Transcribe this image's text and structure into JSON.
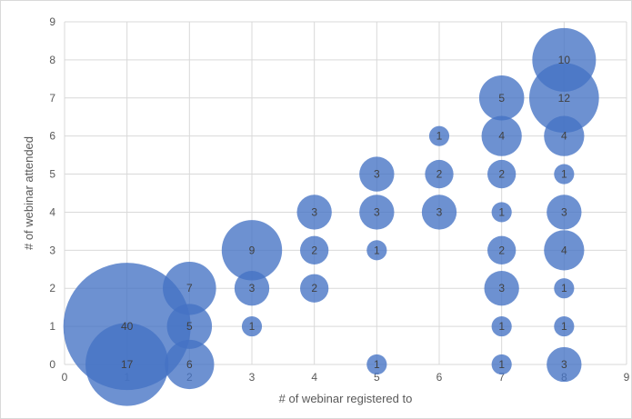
{
  "chart_data": {
    "type": "scatter",
    "variant": "bubble",
    "title": "",
    "xlabel": "# of webinar registered to",
    "ylabel": "# of webinar attended",
    "xlim": [
      0,
      9
    ],
    "ylim": [
      0,
      9
    ],
    "x_ticks": [
      "0",
      "1",
      "2",
      "3",
      "4",
      "5",
      "6",
      "7",
      "8",
      "9"
    ],
    "y_ticks": [
      "0",
      "1",
      "2",
      "3",
      "4",
      "5",
      "6",
      "7",
      "8",
      "9"
    ],
    "grid": "vertical and horizontal",
    "legend": "none",
    "bubble_color": "#4472C4",
    "points": [
      {
        "x": 1,
        "y": 1,
        "size": 40,
        "label": "40"
      },
      {
        "x": 1,
        "y": 0,
        "size": 17,
        "label": "17"
      },
      {
        "x": 2,
        "y": 2,
        "size": 7,
        "label": "7"
      },
      {
        "x": 2,
        "y": 1,
        "size": 5,
        "label": "5"
      },
      {
        "x": 2,
        "y": 0,
        "size": 6,
        "label": "6"
      },
      {
        "x": 3,
        "y": 3,
        "size": 9,
        "label": "9"
      },
      {
        "x": 3,
        "y": 2,
        "size": 3,
        "label": "3"
      },
      {
        "x": 3,
        "y": 1,
        "size": 1,
        "label": "1"
      },
      {
        "x": 4,
        "y": 4,
        "size": 3,
        "label": "3"
      },
      {
        "x": 4,
        "y": 3,
        "size": 2,
        "label": "2"
      },
      {
        "x": 4,
        "y": 2,
        "size": 2,
        "label": "2"
      },
      {
        "x": 5,
        "y": 5,
        "size": 3,
        "label": "3"
      },
      {
        "x": 5,
        "y": 4,
        "size": 3,
        "label": "3"
      },
      {
        "x": 5,
        "y": 3,
        "size": 1,
        "label": "1"
      },
      {
        "x": 5,
        "y": 0,
        "size": 1,
        "label": "1"
      },
      {
        "x": 6,
        "y": 6,
        "size": 1,
        "label": "1"
      },
      {
        "x": 6,
        "y": 5,
        "size": 2,
        "label": "2"
      },
      {
        "x": 6,
        "y": 4,
        "size": 3,
        "label": "3"
      },
      {
        "x": 7,
        "y": 7,
        "size": 5,
        "label": "5"
      },
      {
        "x": 7,
        "y": 6,
        "size": 4,
        "label": "4"
      },
      {
        "x": 7,
        "y": 5,
        "size": 2,
        "label": "2"
      },
      {
        "x": 7,
        "y": 4,
        "size": 1,
        "label": "1"
      },
      {
        "x": 7,
        "y": 3,
        "size": 2,
        "label": "2"
      },
      {
        "x": 7,
        "y": 2,
        "size": 3,
        "label": "3"
      },
      {
        "x": 7,
        "y": 1,
        "size": 1,
        "label": "1"
      },
      {
        "x": 7,
        "y": 0,
        "size": 1,
        "label": "1"
      },
      {
        "x": 8,
        "y": 8,
        "size": 10,
        "label": "10"
      },
      {
        "x": 8,
        "y": 7,
        "size": 12,
        "label": "12"
      },
      {
        "x": 8,
        "y": 6,
        "size": 4,
        "label": "4"
      },
      {
        "x": 8,
        "y": 5,
        "size": 1,
        "label": "1"
      },
      {
        "x": 8,
        "y": 4,
        "size": 3,
        "label": "3"
      },
      {
        "x": 8,
        "y": 3,
        "size": 4,
        "label": "4"
      },
      {
        "x": 8,
        "y": 2,
        "size": 1,
        "label": "1"
      },
      {
        "x": 8,
        "y": 1,
        "size": 1,
        "label": "1"
      },
      {
        "x": 8,
        "y": 0,
        "size": 3,
        "label": "3"
      }
    ]
  }
}
